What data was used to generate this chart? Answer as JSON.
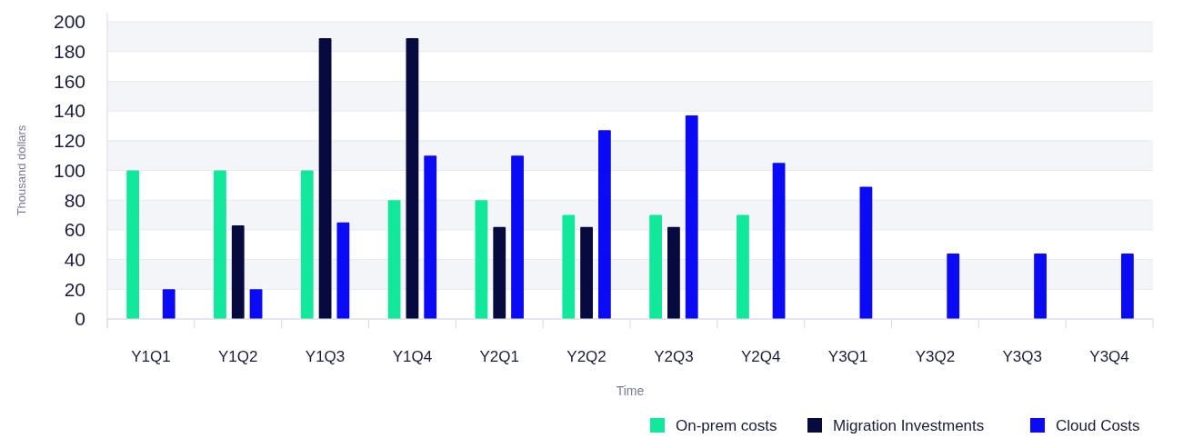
{
  "chart_data": {
    "type": "bar",
    "xlabel": "Time",
    "ylabel": "Thousand dollars",
    "categories": [
      "Y1Q1",
      "Y1Q2",
      "Y1Q3",
      "Y1Q4",
      "Y2Q1",
      "Y2Q2",
      "Y2Q3",
      "Y2Q4",
      "Y3Q1",
      "Y3Q2",
      "Y3Q3",
      "Y3Q4"
    ],
    "series": [
      {
        "name": "On-prem costs",
        "color": "#12e89c",
        "values": [
          100,
          100,
          100,
          80,
          80,
          70,
          70,
          70,
          null,
          null,
          null,
          null
        ]
      },
      {
        "name": "Migration Investments",
        "color": "#060a3e",
        "values": [
          null,
          63,
          189,
          189,
          62,
          62,
          62,
          null,
          null,
          null,
          null,
          null
        ]
      },
      {
        "name": "Cloud Costs",
        "color": "#0a0af5",
        "values": [
          20,
          20,
          65,
          110,
          110,
          127,
          137,
          105,
          89,
          44,
          44,
          44
        ]
      }
    ],
    "ylim": [
      0,
      200
    ],
    "yticks": [
      0,
      20,
      40,
      60,
      80,
      100,
      120,
      140,
      160,
      180,
      200
    ],
    "grid": "y",
    "legend": "bottom right"
  }
}
